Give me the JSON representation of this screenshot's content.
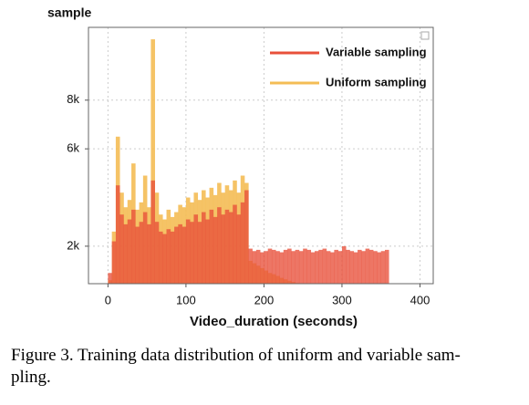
{
  "chart_data": {
    "type": "histogram",
    "y_label": "sample",
    "x_label": "Video_duration (seconds)",
    "bins": [
      0,
      5,
      10,
      15,
      20,
      25,
      30,
      35,
      40,
      45,
      50,
      55,
      60,
      65,
      70,
      75,
      80,
      85,
      90,
      95,
      100,
      105,
      110,
      115,
      120,
      125,
      130,
      135,
      140,
      145,
      150,
      155,
      160,
      165,
      170,
      175,
      180,
      185,
      190,
      195,
      200,
      205,
      210,
      215,
      220,
      225,
      230,
      235,
      240,
      245,
      250,
      255,
      260,
      265,
      270,
      275,
      280,
      285,
      290,
      295,
      300,
      305,
      310,
      315,
      320,
      325,
      330,
      335,
      340,
      345,
      350,
      355,
      360,
      365
    ],
    "series": [
      {
        "name": "Uniform sampling",
        "color": "#f4bd55",
        "values": [
          600,
          2600,
          6500,
          4200,
          3600,
          3900,
          5400,
          3500,
          3800,
          4900,
          3600,
          10500,
          4200,
          3300,
          3100,
          3500,
          3200,
          3400,
          3700,
          3600,
          4000,
          3800,
          4200,
          3900,
          4300,
          4000,
          4400,
          4100,
          4600,
          4200,
          4500,
          4300,
          4700,
          4200,
          4900,
          4600,
          1400,
          1300,
          1200,
          1100,
          1000,
          900,
          850,
          780,
          700,
          640,
          580,
          530,
          490,
          460,
          0,
          0,
          0,
          0,
          0,
          0,
          0,
          0,
          0,
          0,
          0,
          0,
          0,
          0,
          0,
          0,
          0,
          0,
          0,
          0,
          0,
          0,
          0
        ]
      },
      {
        "name": "Variable sampling",
        "color": "#e8503a",
        "values": [
          900,
          2200,
          4500,
          3300,
          2900,
          3100,
          3500,
          2800,
          3000,
          3400,
          2900,
          4700,
          3000,
          2600,
          2500,
          2700,
          2600,
          2800,
          2900,
          2800,
          3100,
          3000,
          3300,
          3000,
          3400,
          3100,
          3500,
          3200,
          3600,
          3300,
          3500,
          3400,
          3700,
          3300,
          3800,
          4300,
          1900,
          1800,
          1850,
          1750,
          1800,
          1900,
          1850,
          1800,
          1750,
          1850,
          1900,
          1800,
          1850,
          1800,
          1900,
          1850,
          1750,
          1800,
          1850,
          1900,
          1800,
          1750,
          1850,
          1800,
          2000,
          1850,
          1800,
          1750,
          1850,
          1800,
          1900,
          1850,
          1800,
          1750,
          1800,
          1850,
          0
        ]
      }
    ],
    "xlim": [
      -25,
      417
    ],
    "ylim": [
      460,
      10990
    ],
    "xticks": [
      0,
      100,
      200,
      300,
      400
    ],
    "yticks": [
      {
        "value": 2000,
        "label": "2k"
      },
      {
        "value": 6000,
        "label": "6k"
      },
      {
        "value": 8000,
        "label": "8k"
      }
    ],
    "grid": true,
    "legend": "upper right"
  },
  "caption": [
    "Figure 3. Training data distribution of uniform and variable sam-",
    "pling."
  ]
}
